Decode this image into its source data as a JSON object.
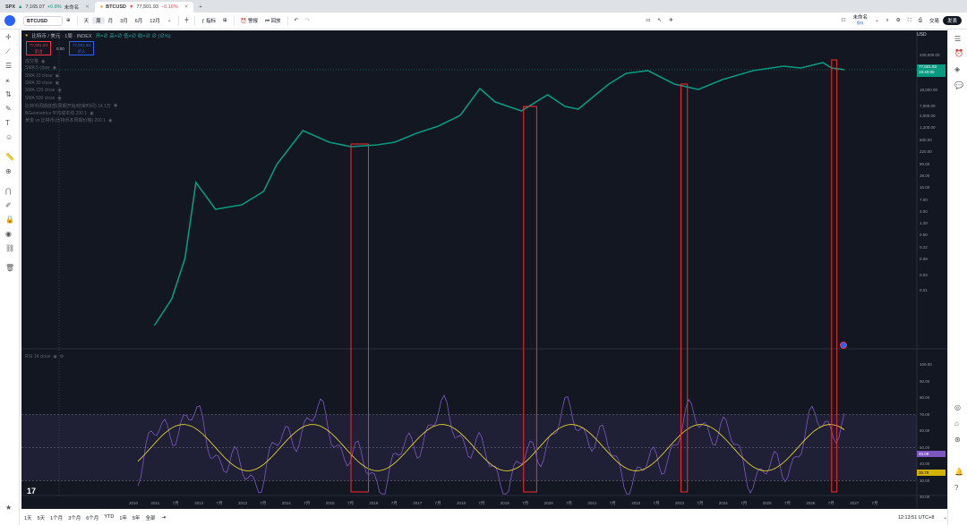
{
  "tabs": [
    {
      "symbol": "SPX",
      "price": "7,165.07",
      "change": "+0.8%",
      "extra": "未命名",
      "direction": "up",
      "active": false
    },
    {
      "symbol": "BTCUSD",
      "price": "77,501.93",
      "change": "−0.16%",
      "direction": "down",
      "active": true
    }
  ],
  "toolbar": {
    "symbol": "BTCUSD",
    "intervals": [
      "天",
      "周",
      "月",
      "3月",
      "6月",
      "12月"
    ],
    "indicators_label": "指标",
    "alert_label": "警报",
    "replay_label": "回放",
    "layout_name": "未命名",
    "layout_sub": "保存",
    "publish_label": "发表",
    "trade_label": "交易"
  },
  "chart_header": {
    "title": "比特币 / 美元 · 1周 · INDEX",
    "ohlc": "开=∅ 高=∅ 低=∅ 收=∅ ∅ (∅%)"
  },
  "price_boxes": {
    "sell_price": "77,501.93",
    "sell_label": "卖出",
    "spread": "0.00",
    "buy_price": "77,501.93",
    "buy_label": "买入"
  },
  "indicators": [
    "成交量",
    "SMA 5 close",
    "SMA 10 close",
    "SMA 30 close",
    "SMA 120 close",
    "SMA 500 close",
    "比特币周期底部(周期开始/结束时间) 14 1万",
    "BGeometrics 平均成本线 200 1",
    "黄金 vs 比特币(比特币本周期价格) 200 1"
  ],
  "rsi_label": "RSI 14 close",
  "price_axis": {
    "currency": "USD",
    "ticks": [
      "230,000.00",
      "77,501.93",
      "19,400.00",
      "18,000.00",
      "7,000.00",
      "3,000.00",
      "1,200.00",
      "500.00",
      "220.00",
      "90.00",
      "38.00",
      "16.00",
      "7.00",
      "3.00",
      "1.20",
      "0.50",
      "0.22",
      "0.09",
      "0.03",
      "0.01"
    ],
    "last_price": "77,501.93",
    "countdown": "19:40:00"
  },
  "rsi_axis": {
    "ticks": [
      "100.00",
      "90.00",
      "80.00",
      "70.00",
      "60.00",
      "50.00",
      "40.00",
      "30.00",
      "20.00"
    ],
    "rsi_value": "46.09",
    "rsi_ma": "35.79"
  },
  "time_axis": [
    "2010",
    "2011",
    "7月",
    "2012",
    "7月",
    "2013",
    "7月",
    "2014",
    "7月",
    "2015",
    "7月",
    "2016",
    "7月",
    "2017",
    "7月",
    "2018",
    "7月",
    "2019",
    "7月",
    "2020",
    "7月",
    "2021",
    "7月",
    "2022",
    "7月",
    "2023",
    "7月",
    "2024",
    "7月",
    "2025",
    "7月",
    "2026",
    "7月",
    "2027",
    "7月"
  ],
  "highlight_boxes_years": [
    "2015",
    "2019",
    "2022",
    "2026"
  ],
  "range_buttons": [
    "1天",
    "5天",
    "1个月",
    "3个月",
    "6个月",
    "YTD",
    "1年",
    "5年",
    "全部"
  ],
  "clock": "12:13:51 UTC+8",
  "colors": {
    "background": "#131722",
    "up": "#089981",
    "down": "#f23645",
    "rsi_line": "#7e57c2",
    "rsi_ma": "#f7e02b",
    "highlight_box": "#ff2a2a"
  }
}
